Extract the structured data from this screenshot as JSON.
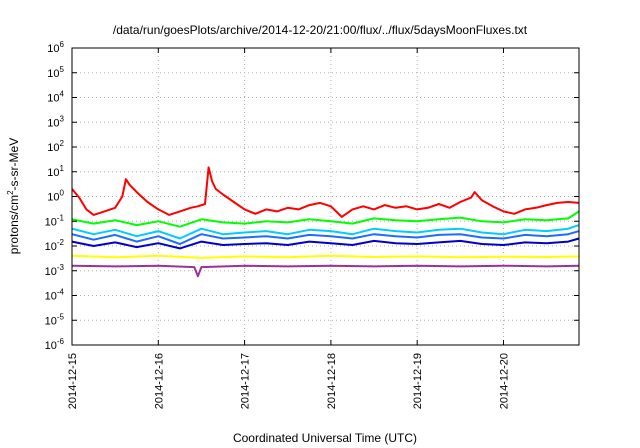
{
  "chart_data": {
    "type": "line",
    "title": "/data/run/goesPlots/archive/2014-12-20/21:00/flux/../flux/5daysMoonFluxes.txt",
    "xlabel": "Coordinated Universal Time (UTC)",
    "ylabel": "protons/cm²-s-sr-MeV",
    "ylabel_parts": {
      "pre": "protons/cm",
      "sup": "2",
      "post": "-s-sr-MeV"
    },
    "yscale": "log",
    "ylim": [
      1e-06,
      1000000.0
    ],
    "yticks": [
      {
        "value": 1e-06,
        "base": "10",
        "exp": "-6"
      },
      {
        "value": 1e-05,
        "base": "10",
        "exp": "-5"
      },
      {
        "value": 0.0001,
        "base": "10",
        "exp": "-4"
      },
      {
        "value": 0.001,
        "base": "10",
        "exp": "-3"
      },
      {
        "value": 0.01,
        "base": "10",
        "exp": "-2"
      },
      {
        "value": 0.1,
        "base": "10",
        "exp": "-1"
      },
      {
        "value": 1.0,
        "base": "10",
        "exp": "0"
      },
      {
        "value": 10.0,
        "base": "10",
        "exp": "1"
      },
      {
        "value": 100.0,
        "base": "10",
        "exp": "2"
      },
      {
        "value": 1000.0,
        "base": "10",
        "exp": "3"
      },
      {
        "value": 10000.0,
        "base": "10",
        "exp": "4"
      },
      {
        "value": 100000.0,
        "base": "10",
        "exp": "5"
      },
      {
        "value": 1000000.0,
        "base": "10",
        "exp": "6"
      }
    ],
    "xlim": [
      "2014-12-15T00:00",
      "2014-12-20T21:00"
    ],
    "xticks": [
      "2014-12-15",
      "2014-12-16",
      "2014-12-17",
      "2014-12-18",
      "2014-12-19",
      "2014-12-20"
    ],
    "grid": true,
    "legend": "none",
    "series": [
      {
        "color": "#ff0000",
        "points": [
          [
            "2014-12-15T00:00",
            2.0
          ],
          [
            "2014-12-15T02:00",
            0.9
          ],
          [
            "2014-12-15T04:00",
            0.3
          ],
          [
            "2014-12-15T06:00",
            0.18
          ],
          [
            "2014-12-15T09:00",
            0.25
          ],
          [
            "2014-12-15T12:00",
            0.35
          ],
          [
            "2014-12-15T14:00",
            1.0
          ],
          [
            "2014-12-15T15:00",
            5.0
          ],
          [
            "2014-12-15T16:00",
            3.0
          ],
          [
            "2014-12-15T18:00",
            1.5
          ],
          [
            "2014-12-15T21:00",
            0.6
          ],
          [
            "2014-12-16T00:00",
            0.3
          ],
          [
            "2014-12-16T03:00",
            0.18
          ],
          [
            "2014-12-16T06:00",
            0.25
          ],
          [
            "2014-12-16T09:00",
            0.35
          ],
          [
            "2014-12-16T11:00",
            0.4
          ],
          [
            "2014-12-16T13:00",
            0.5
          ],
          [
            "2014-12-16T14:00",
            15.0
          ],
          [
            "2014-12-16T15:00",
            4.0
          ],
          [
            "2014-12-16T16:00",
            2.0
          ],
          [
            "2014-12-16T18:00",
            1.2
          ],
          [
            "2014-12-16T21:00",
            0.6
          ],
          [
            "2014-12-17T00:00",
            0.3
          ],
          [
            "2014-12-17T03:00",
            0.2
          ],
          [
            "2014-12-17T06:00",
            0.3
          ],
          [
            "2014-12-17T09:00",
            0.25
          ],
          [
            "2014-12-17T12:00",
            0.35
          ],
          [
            "2014-12-17T15:00",
            0.3
          ],
          [
            "2014-12-17T18:00",
            0.45
          ],
          [
            "2014-12-17T21:00",
            0.55
          ],
          [
            "2014-12-18T00:00",
            0.4
          ],
          [
            "2014-12-18T03:00",
            0.15
          ],
          [
            "2014-12-18T06:00",
            0.3
          ],
          [
            "2014-12-18T09:00",
            0.4
          ],
          [
            "2014-12-18T12:00",
            0.3
          ],
          [
            "2014-12-18T15:00",
            0.45
          ],
          [
            "2014-12-18T18:00",
            0.35
          ],
          [
            "2014-12-18T21:00",
            0.4
          ],
          [
            "2014-12-19T00:00",
            0.3
          ],
          [
            "2014-12-19T03:00",
            0.35
          ],
          [
            "2014-12-19T06:00",
            0.5
          ],
          [
            "2014-12-19T09:00",
            0.35
          ],
          [
            "2014-12-19T12:00",
            0.6
          ],
          [
            "2014-12-19T15:00",
            0.9
          ],
          [
            "2014-12-19T16:00",
            1.5
          ],
          [
            "2014-12-19T18:00",
            0.7
          ],
          [
            "2014-12-19T21:00",
            0.4
          ],
          [
            "2014-12-20T00:00",
            0.25
          ],
          [
            "2014-12-20T03:00",
            0.2
          ],
          [
            "2014-12-20T06:00",
            0.3
          ],
          [
            "2014-12-20T09:00",
            0.35
          ],
          [
            "2014-12-20T12:00",
            0.45
          ],
          [
            "2014-12-20T15:00",
            0.55
          ],
          [
            "2014-12-20T18:00",
            0.6
          ],
          [
            "2014-12-20T21:00",
            0.55
          ]
        ]
      },
      {
        "color": "#00ff00",
        "points": [
          [
            "2014-12-15T00:00",
            0.12
          ],
          [
            "2014-12-15T06:00",
            0.08
          ],
          [
            "2014-12-15T12:00",
            0.11
          ],
          [
            "2014-12-15T18:00",
            0.07
          ],
          [
            "2014-12-16T00:00",
            0.1
          ],
          [
            "2014-12-16T06:00",
            0.06
          ],
          [
            "2014-12-16T12:00",
            0.12
          ],
          [
            "2014-12-16T18:00",
            0.09
          ],
          [
            "2014-12-17T00:00",
            0.08
          ],
          [
            "2014-12-17T06:00",
            0.1
          ],
          [
            "2014-12-17T12:00",
            0.09
          ],
          [
            "2014-12-17T18:00",
            0.12
          ],
          [
            "2014-12-18T00:00",
            0.1
          ],
          [
            "2014-12-18T06:00",
            0.08
          ],
          [
            "2014-12-18T12:00",
            0.13
          ],
          [
            "2014-12-18T18:00",
            0.11
          ],
          [
            "2014-12-19T00:00",
            0.1
          ],
          [
            "2014-12-19T06:00",
            0.12
          ],
          [
            "2014-12-19T12:00",
            0.14
          ],
          [
            "2014-12-19T18:00",
            0.1
          ],
          [
            "2014-12-20T00:00",
            0.09
          ],
          [
            "2014-12-20T06:00",
            0.12
          ],
          [
            "2014-12-20T12:00",
            0.11
          ],
          [
            "2014-12-20T18:00",
            0.13
          ],
          [
            "2014-12-20T21:00",
            0.25
          ]
        ]
      },
      {
        "color": "#00ccff",
        "points": [
          [
            "2014-12-15T00:00",
            0.05
          ],
          [
            "2014-12-15T06:00",
            0.03
          ],
          [
            "2014-12-15T12:00",
            0.045
          ],
          [
            "2014-12-15T18:00",
            0.025
          ],
          [
            "2014-12-16T00:00",
            0.04
          ],
          [
            "2014-12-16T06:00",
            0.02
          ],
          [
            "2014-12-16T12:00",
            0.05
          ],
          [
            "2014-12-16T18:00",
            0.03
          ],
          [
            "2014-12-17T00:00",
            0.035
          ],
          [
            "2014-12-17T06:00",
            0.04
          ],
          [
            "2014-12-17T12:00",
            0.03
          ],
          [
            "2014-12-17T18:00",
            0.045
          ],
          [
            "2014-12-18T00:00",
            0.04
          ],
          [
            "2014-12-18T06:00",
            0.03
          ],
          [
            "2014-12-18T12:00",
            0.05
          ],
          [
            "2014-12-18T18:00",
            0.04
          ],
          [
            "2014-12-19T00:00",
            0.035
          ],
          [
            "2014-12-19T06:00",
            0.045
          ],
          [
            "2014-12-19T12:00",
            0.05
          ],
          [
            "2014-12-19T18:00",
            0.035
          ],
          [
            "2014-12-20T00:00",
            0.03
          ],
          [
            "2014-12-20T06:00",
            0.045
          ],
          [
            "2014-12-20T12:00",
            0.04
          ],
          [
            "2014-12-20T18:00",
            0.05
          ],
          [
            "2014-12-20T21:00",
            0.07
          ]
        ]
      },
      {
        "color": "#1e6cff",
        "points": [
          [
            "2014-12-15T00:00",
            0.03
          ],
          [
            "2014-12-15T06:00",
            0.018
          ],
          [
            "2014-12-15T12:00",
            0.028
          ],
          [
            "2014-12-15T18:00",
            0.015
          ],
          [
            "2014-12-16T00:00",
            0.025
          ],
          [
            "2014-12-16T06:00",
            0.012
          ],
          [
            "2014-12-16T12:00",
            0.03
          ],
          [
            "2014-12-16T18:00",
            0.02
          ],
          [
            "2014-12-17T00:00",
            0.022
          ],
          [
            "2014-12-17T06:00",
            0.025
          ],
          [
            "2014-12-17T12:00",
            0.02
          ],
          [
            "2014-12-17T18:00",
            0.028
          ],
          [
            "2014-12-18T00:00",
            0.025
          ],
          [
            "2014-12-18T06:00",
            0.02
          ],
          [
            "2014-12-18T12:00",
            0.03
          ],
          [
            "2014-12-18T18:00",
            0.025
          ],
          [
            "2014-12-19T00:00",
            0.022
          ],
          [
            "2014-12-19T06:00",
            0.028
          ],
          [
            "2014-12-19T12:00",
            0.03
          ],
          [
            "2014-12-19T18:00",
            0.022
          ],
          [
            "2014-12-20T00:00",
            0.02
          ],
          [
            "2014-12-20T06:00",
            0.028
          ],
          [
            "2014-12-20T12:00",
            0.025
          ],
          [
            "2014-12-20T18:00",
            0.03
          ],
          [
            "2014-12-20T21:00",
            0.04
          ]
        ]
      },
      {
        "color": "#0000cc",
        "points": [
          [
            "2014-12-15T00:00",
            0.015
          ],
          [
            "2014-12-15T06:00",
            0.01
          ],
          [
            "2014-12-15T12:00",
            0.014
          ],
          [
            "2014-12-15T18:00",
            0.009
          ],
          [
            "2014-12-16T00:00",
            0.013
          ],
          [
            "2014-12-16T06:00",
            0.008
          ],
          [
            "2014-12-16T12:00",
            0.015
          ],
          [
            "2014-12-16T18:00",
            0.011
          ],
          [
            "2014-12-17T00:00",
            0.012
          ],
          [
            "2014-12-17T06:00",
            0.013
          ],
          [
            "2014-12-17T12:00",
            0.011
          ],
          [
            "2014-12-17T18:00",
            0.015
          ],
          [
            "2014-12-18T00:00",
            0.013
          ],
          [
            "2014-12-18T06:00",
            0.011
          ],
          [
            "2014-12-18T12:00",
            0.016
          ],
          [
            "2014-12-18T18:00",
            0.013
          ],
          [
            "2014-12-19T00:00",
            0.012
          ],
          [
            "2014-12-19T06:00",
            0.014
          ],
          [
            "2014-12-19T12:00",
            0.016
          ],
          [
            "2014-12-19T18:00",
            0.012
          ],
          [
            "2014-12-20T00:00",
            0.011
          ],
          [
            "2014-12-20T06:00",
            0.014
          ],
          [
            "2014-12-20T12:00",
            0.013
          ],
          [
            "2014-12-20T18:00",
            0.015
          ],
          [
            "2014-12-20T21:00",
            0.02
          ]
        ]
      },
      {
        "color": "#ffff00",
        "points": [
          [
            "2014-12-15T00:00",
            0.004
          ],
          [
            "2014-12-15T12:00",
            0.0035
          ],
          [
            "2014-12-16T00:00",
            0.004
          ],
          [
            "2014-12-16T12:00",
            0.0033
          ],
          [
            "2014-12-17T00:00",
            0.0038
          ],
          [
            "2014-12-17T12:00",
            0.0035
          ],
          [
            "2014-12-18T00:00",
            0.004
          ],
          [
            "2014-12-18T12:00",
            0.0036
          ],
          [
            "2014-12-19T00:00",
            0.0038
          ],
          [
            "2014-12-19T12:00",
            0.0035
          ],
          [
            "2014-12-20T00:00",
            0.0037
          ],
          [
            "2014-12-20T12:00",
            0.0036
          ],
          [
            "2014-12-20T21:00",
            0.0038
          ]
        ]
      },
      {
        "color": "#993399",
        "points": [
          [
            "2014-12-15T00:00",
            0.0016
          ],
          [
            "2014-12-15T12:00",
            0.0015
          ],
          [
            "2014-12-16T00:00",
            0.0016
          ],
          [
            "2014-12-16T10:00",
            0.0014
          ],
          [
            "2014-12-16T11:00",
            0.0006
          ],
          [
            "2014-12-16T12:00",
            0.0014
          ],
          [
            "2014-12-17T00:00",
            0.0016
          ],
          [
            "2014-12-17T12:00",
            0.0015
          ],
          [
            "2014-12-18T00:00",
            0.0016
          ],
          [
            "2014-12-18T12:00",
            0.0015
          ],
          [
            "2014-12-19T00:00",
            0.0016
          ],
          [
            "2014-12-19T12:00",
            0.0015
          ],
          [
            "2014-12-20T00:00",
            0.0016
          ],
          [
            "2014-12-20T12:00",
            0.0015
          ],
          [
            "2014-12-20T21:00",
            0.0016
          ]
        ]
      }
    ]
  }
}
